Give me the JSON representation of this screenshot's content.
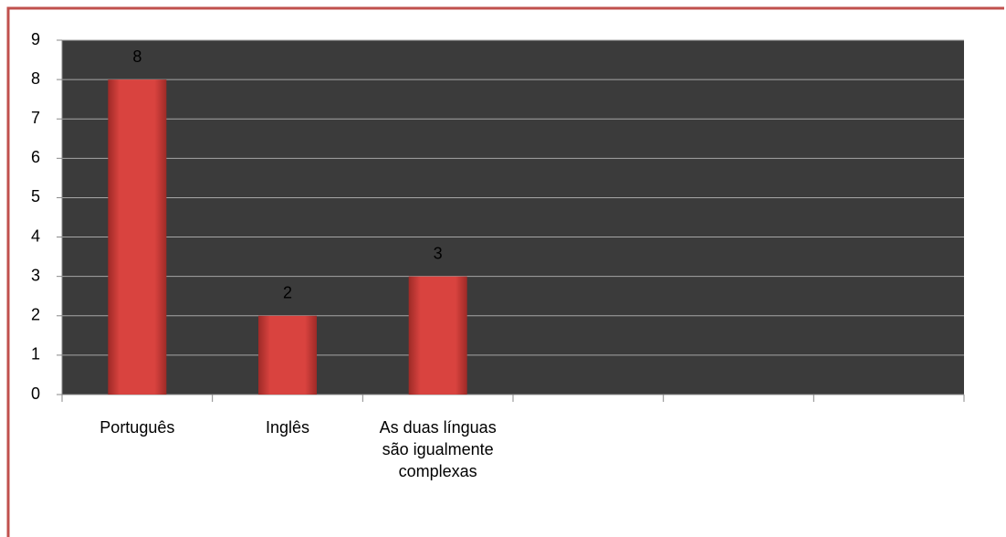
{
  "chart_data": {
    "type": "bar",
    "categories": [
      "Português",
      "Inglês",
      "As duas línguas são igualmente complexas",
      null,
      null,
      null
    ],
    "values": [
      8,
      2,
      3,
      null,
      null,
      null
    ],
    "color": "#d9433f",
    "plot_background": "#3b3b3b",
    "ylim": [
      0,
      9
    ],
    "yticks": [
      0,
      1,
      2,
      3,
      4,
      5,
      6,
      7,
      8,
      9
    ],
    "grid": true
  }
}
